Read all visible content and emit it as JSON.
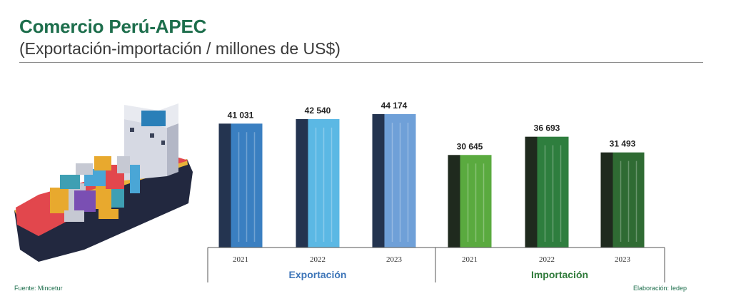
{
  "header": {
    "title": "Comercio Perú-APEC",
    "subtitle": "(Exportación-importación / millones de US$)"
  },
  "footer": {
    "source": "Fuente: Mincetur",
    "credit": "Elaboración: Iedep"
  },
  "illustration": {
    "name": "cargo-ship"
  },
  "colors": {
    "title": "#1d6e4c",
    "export_label": "#3d75b8",
    "import_label": "#2f7a3a",
    "export_bars": [
      "#3a7fc1",
      "#5bb8e4",
      "#6fa0d8"
    ],
    "import_bars": [
      "#5aaa3f",
      "#2e7e3e",
      "#2f6b33"
    ]
  },
  "chart_data": {
    "type": "bar",
    "groups": [
      {
        "name": "Exportación",
        "categories": [
          "2021",
          "2022",
          "2023"
        ],
        "values": [
          41031,
          42540,
          44174
        ],
        "labels": [
          "41 031",
          "42 540",
          "44 174"
        ]
      },
      {
        "name": "Importación",
        "categories": [
          "2021",
          "2022",
          "2023"
        ],
        "values": [
          30645,
          36693,
          31493
        ],
        "labels": [
          "30 645",
          "36 693",
          "31 493"
        ]
      }
    ]
  }
}
